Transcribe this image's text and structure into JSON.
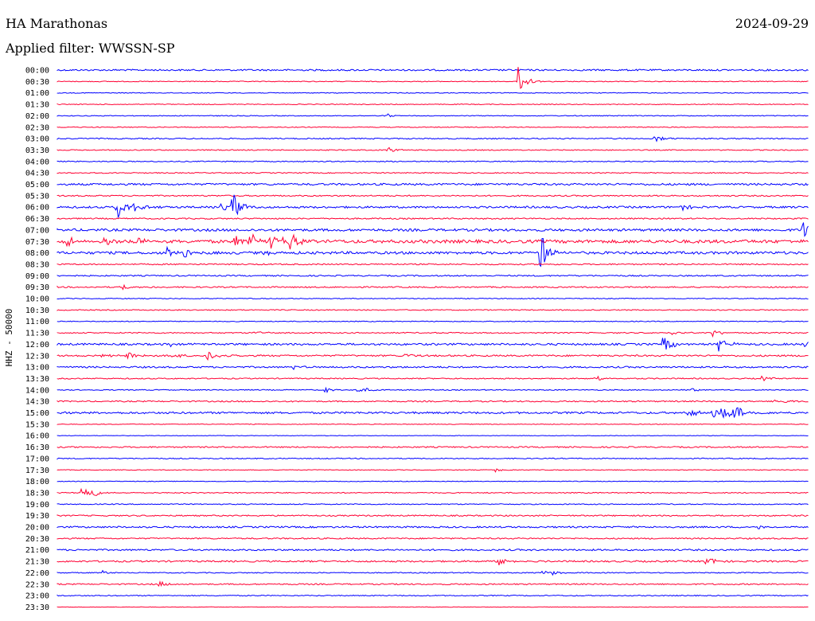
{
  "header": {
    "station": "HA Marathonas",
    "date": "2024-09-29",
    "filter": "Applied filter: WWSSN-SP"
  },
  "colors": {
    "blue": "#0000ff",
    "red": "#ff0033",
    "text": "#000000"
  },
  "chart_data": {
    "type": "line",
    "title": "HA Marathonas",
    "ylabel": "HHZ - 50000",
    "x_axis_range_minutes": [
      0,
      30
    ],
    "grid": false,
    "row_labels": [
      "00:00",
      "00:30",
      "01:00",
      "01:30",
      "02:00",
      "02:30",
      "03:00",
      "03:30",
      "04:00",
      "04:30",
      "05:00",
      "05:30",
      "06:00",
      "06:30",
      "07:00",
      "07:30",
      "08:00",
      "08:30",
      "09:00",
      "09:30",
      "10:00",
      "10:30",
      "11:00",
      "11:30",
      "12:00",
      "12:30",
      "13:00",
      "13:30",
      "14:00",
      "14:30",
      "15:00",
      "15:30",
      "16:00",
      "16:30",
      "17:00",
      "17:30",
      "18:00",
      "18:30",
      "19:00",
      "19:30",
      "20:00",
      "20:30",
      "21:00",
      "21:30",
      "22:00",
      "22:30",
      "23:00",
      "23:30"
    ],
    "noise_level": [
      1,
      0.5,
      0.5,
      0.5,
      0.5,
      0.5,
      0.7,
      0.6,
      0.6,
      0.6,
      1.2,
      0.8,
      1.2,
      0.8,
      1.5,
      2,
      1.6,
      0.8,
      0.8,
      0.8,
      0.5,
      0.6,
      0.5,
      0.7,
      1.2,
      1,
      1,
      0.7,
      0.6,
      0.8,
      1.2,
      0.4,
      0.3,
      0.8,
      0.6,
      0.4,
      0.4,
      0.6,
      0.6,
      0.8,
      1,
      0.8,
      1,
      1,
      0.6,
      0.8,
      0.6,
      0.3
    ],
    "events": [
      {
        "row": 1,
        "minute": 18.4,
        "amplitude": 18
      },
      {
        "row": 4,
        "minute": 13.2,
        "amplitude": 2
      },
      {
        "row": 7,
        "minute": 13.2,
        "amplitude": 5
      },
      {
        "row": 6,
        "minute": 23.9,
        "amplitude": 5
      },
      {
        "row": 12,
        "minute": 2.4,
        "amplitude": 16
      },
      {
        "row": 12,
        "minute": 3.1,
        "amplitude": 5
      },
      {
        "row": 12,
        "minute": 6.5,
        "amplitude": 5
      },
      {
        "row": 12,
        "minute": 7.0,
        "amplitude": 18
      },
      {
        "row": 12,
        "minute": 24.9,
        "amplitude": 5
      },
      {
        "row": 14,
        "minute": 29.8,
        "amplitude": 15
      },
      {
        "row": 15,
        "minute": 0.4,
        "amplitude": 6
      },
      {
        "row": 15,
        "minute": 1.9,
        "amplitude": 8
      },
      {
        "row": 15,
        "minute": 3.0,
        "amplitude": 10
      },
      {
        "row": 15,
        "minute": 7.1,
        "amplitude": 8
      },
      {
        "row": 15,
        "minute": 7.7,
        "amplitude": 10
      },
      {
        "row": 15,
        "minute": 8.5,
        "amplitude": 12
      },
      {
        "row": 15,
        "minute": 9.0,
        "amplitude": 7
      },
      {
        "row": 15,
        "minute": 9.3,
        "amplitude": 11
      },
      {
        "row": 16,
        "minute": 4.3,
        "amplitude": 8
      },
      {
        "row": 16,
        "minute": 5.0,
        "amplitude": 8
      },
      {
        "row": 16,
        "minute": 8.2,
        "amplitude": 4
      },
      {
        "row": 16,
        "minute": 19.3,
        "amplitude": 28
      },
      {
        "row": 19,
        "minute": 2.5,
        "amplitude": 5
      },
      {
        "row": 23,
        "minute": 7.9,
        "amplitude": 3
      },
      {
        "row": 24,
        "minute": 4.5,
        "amplitude": 3
      },
      {
        "row": 24,
        "minute": 24.2,
        "amplitude": 14
      },
      {
        "row": 23,
        "minute": 24.6,
        "amplitude": 4
      },
      {
        "row": 23,
        "minute": 26.1,
        "amplitude": 6
      },
      {
        "row": 24,
        "minute": 26.4,
        "amplitude": 12
      },
      {
        "row": 24,
        "minute": 29.8,
        "amplitude": 5
      },
      {
        "row": 25,
        "minute": 1.8,
        "amplitude": 4
      },
      {
        "row": 25,
        "minute": 2.8,
        "amplitude": 5
      },
      {
        "row": 25,
        "minute": 4.6,
        "amplitude": 4
      },
      {
        "row": 25,
        "minute": 6.0,
        "amplitude": 8
      },
      {
        "row": 25,
        "minute": 13.9,
        "amplitude": 3
      },
      {
        "row": 26,
        "minute": 9.4,
        "amplitude": 3
      },
      {
        "row": 27,
        "minute": 21.5,
        "amplitude": 3
      },
      {
        "row": 27,
        "minute": 28.1,
        "amplitude": 4
      },
      {
        "row": 28,
        "minute": 10.7,
        "amplitude": 3
      },
      {
        "row": 28,
        "minute": 11.9,
        "amplitude": 3
      },
      {
        "row": 28,
        "minute": 12.3,
        "amplitude": 3
      },
      {
        "row": 28,
        "minute": 25.3,
        "amplitude": 3
      },
      {
        "row": 29,
        "minute": 28.7,
        "amplitude": 6
      },
      {
        "row": 30,
        "minute": 25.2,
        "amplitude": 6
      },
      {
        "row": 30,
        "minute": 26.2,
        "amplitude": 7
      },
      {
        "row": 30,
        "minute": 26.5,
        "amplitude": 8
      },
      {
        "row": 30,
        "minute": 26.9,
        "amplitude": 16
      },
      {
        "row": 35,
        "minute": 17.5,
        "amplitude": 3
      },
      {
        "row": 37,
        "minute": 1.0,
        "amplitude": 10
      },
      {
        "row": 37,
        "minute": 1.3,
        "amplitude": 7
      },
      {
        "row": 40,
        "minute": 27.9,
        "amplitude": 3
      },
      {
        "row": 43,
        "minute": 17.6,
        "amplitude": 7
      },
      {
        "row": 43,
        "minute": 25.9,
        "amplitude": 7
      },
      {
        "row": 44,
        "minute": 1.8,
        "amplitude": 3
      },
      {
        "row": 44,
        "minute": 19.4,
        "amplitude": 3
      },
      {
        "row": 44,
        "minute": 19.8,
        "amplitude": 3
      },
      {
        "row": 45,
        "minute": 4.1,
        "amplitude": 4
      }
    ]
  }
}
